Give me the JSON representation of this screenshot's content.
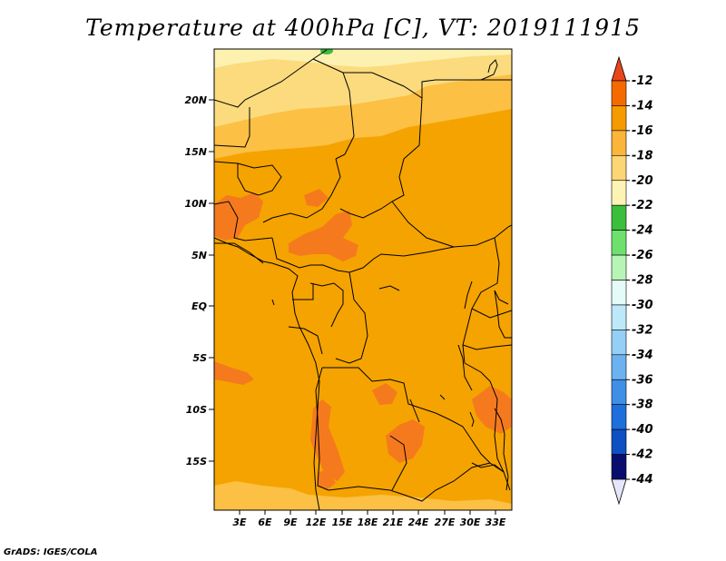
{
  "title": "Temperature at 400hPa [C], VT: 2019111915",
  "credit": "GrADS: IGES/COLA",
  "map": {
    "lat_labels": [
      "20N",
      "15N",
      "10N",
      "5N",
      "EQ",
      "5S",
      "10S",
      "15S"
    ],
    "lon_labels": [
      "3E",
      "6E",
      "9E",
      "12E",
      "15E",
      "18E",
      "21E",
      "24E",
      "27E",
      "30E",
      "33E"
    ],
    "colors": {
      "bg_main": "#f5a300",
      "band_16_18": "#fbc044",
      "band_18_20": "#fbdb7e",
      "band_20_22": "#fdf1b0",
      "warm_14_12": "#f57a1e",
      "green_24": "#3cbe3c",
      "border": "#000000"
    }
  },
  "colorbar": {
    "labels": [
      "-12",
      "-14",
      "-16",
      "-18",
      "-20",
      "-22",
      "-24",
      "-26",
      "-28",
      "-30",
      "-32",
      "-34",
      "-36",
      "-38",
      "-40",
      "-42",
      "-44"
    ],
    "colors": [
      "#e8461a",
      "#f56a00",
      "#f59a00",
      "#fbb53a",
      "#fcd574",
      "#fdf3b4",
      "#3bbe3b",
      "#6ee06e",
      "#b7f5b7",
      "#e4fbf7",
      "#bde8fa",
      "#95cff5",
      "#6cb2f0",
      "#3f8fe6",
      "#1e6fdc",
      "#0f4fc4",
      "#090e6e",
      "#e6e6fa"
    ]
  }
}
